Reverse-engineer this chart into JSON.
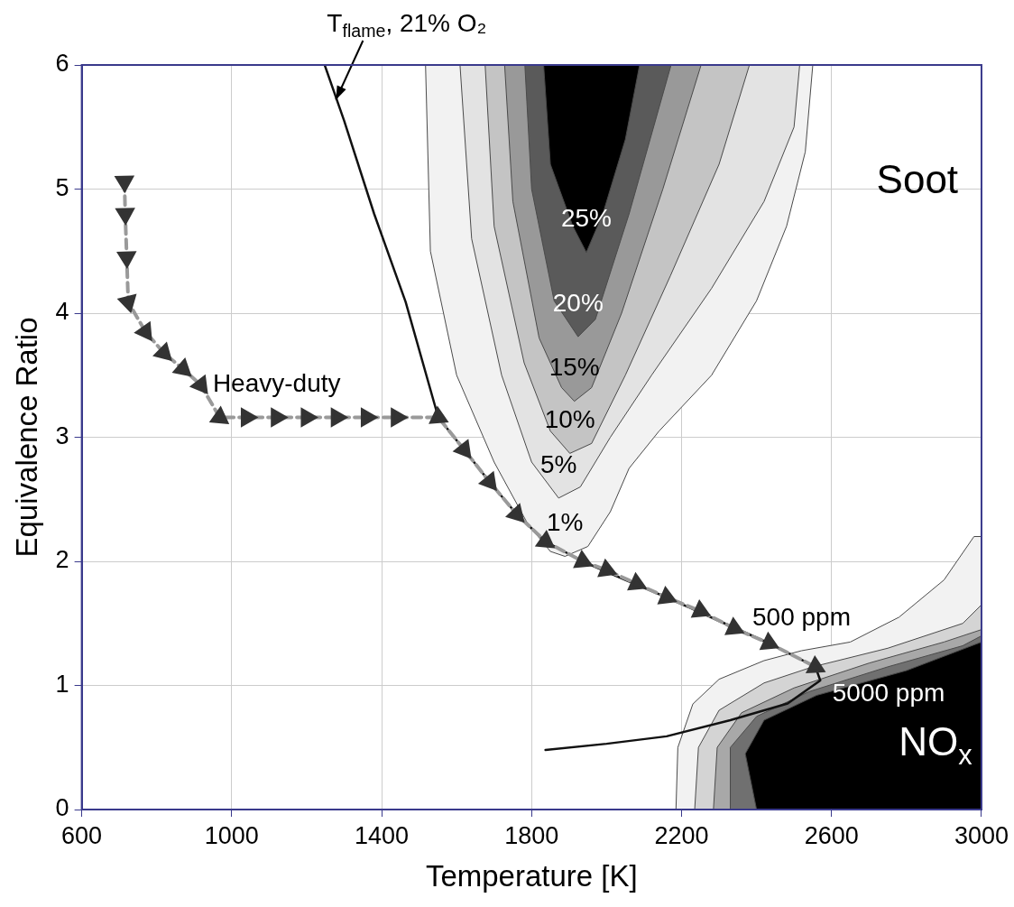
{
  "chart_data": {
    "type": "line",
    "xlabel": "Temperature [K]",
    "ylabel": "Equivalence Ratio",
    "xlim": [
      600,
      3000
    ],
    "ylim": [
      0,
      6
    ],
    "xticks": [
      600,
      1000,
      1400,
      1800,
      2200,
      2600,
      3000
    ],
    "yticks": [
      0,
      1,
      2,
      3,
      4,
      5,
      6
    ],
    "grid": true,
    "legend": false,
    "series": [
      {
        "type": "area",
        "color": "#f2f2f2",
        "x": [
          1517,
          1530,
          1600,
          1700,
          1790,
          1850,
          1889,
          1950,
          2010,
          2060,
          2140,
          2280,
          2400,
          2480,
          2530,
          2550
        ],
        "values": [
          6,
          4.5,
          3.5,
          2.8,
          2.3,
          2.08,
          2.04,
          2.12,
          2.4,
          2.75,
          3.05,
          3.5,
          4.1,
          4.7,
          5.3,
          6
        ]
      },
      {
        "type": "area",
        "color": "#e3e3e3",
        "x": [
          1609,
          1640,
          1720,
          1800,
          1872,
          1930,
          2010,
          2120,
          2280,
          2420,
          2500,
          2515
        ],
        "values": [
          6,
          4.6,
          3.5,
          2.8,
          2.51,
          2.6,
          3.0,
          3.5,
          4.2,
          4.9,
          5.5,
          6
        ]
      },
      {
        "type": "area",
        "color": "#c4c4c4",
        "x": [
          1676,
          1700,
          1780,
          1850,
          1902,
          1960,
          2050,
          2170,
          2300,
          2381
        ],
        "values": [
          6,
          4.7,
          3.6,
          3.05,
          2.87,
          2.95,
          3.5,
          4.3,
          5.2,
          6
        ]
      },
      {
        "type": "area",
        "color": "#999999",
        "x": [
          1728,
          1750,
          1820,
          1880,
          1914,
          1960,
          2040,
          2150,
          2252
        ],
        "values": [
          6,
          4.9,
          3.8,
          3.4,
          3.29,
          3.4,
          4.0,
          5.0,
          6
        ]
      },
      {
        "type": "area",
        "color": "#5a5a5a",
        "x": [
          1782,
          1800,
          1860,
          1924,
          1970,
          2060,
          2172
        ],
        "values": [
          6,
          5.0,
          4.1,
          3.81,
          3.95,
          4.8,
          6
        ]
      },
      {
        "type": "area",
        "color": "#000000",
        "x": [
          1832,
          1850,
          1910,
          1946,
          1990,
          2050,
          2088
        ],
        "values": [
          6,
          5.2,
          4.7,
          4.49,
          4.8,
          5.4,
          6
        ]
      },
      {
        "type": "area",
        "color": "#f2f2f2",
        "x": [
          2185,
          2190,
          2230,
          2300,
          2420,
          2520,
          2650,
          2780,
          2900,
          2980,
          3000,
          3000
        ],
        "values": [
          0,
          0.5,
          0.85,
          1.05,
          1.2,
          1.28,
          1.35,
          1.55,
          1.85,
          2.2,
          2.2,
          0
        ]
      },
      {
        "type": "area",
        "color": "#d4d4d4",
        "x": [
          2235,
          2245,
          2300,
          2420,
          2550,
          2750,
          2950,
          3000,
          3000
        ],
        "values": [
          0,
          0.5,
          0.8,
          1.02,
          1.15,
          1.3,
          1.5,
          1.65,
          0
        ]
      },
      {
        "type": "area",
        "color": "#a8a8a8",
        "x": [
          2285,
          2295,
          2360,
          2500,
          2700,
          2900,
          3000,
          3000
        ],
        "values": [
          0,
          0.5,
          0.78,
          0.98,
          1.18,
          1.35,
          1.45,
          0
        ]
      },
      {
        "type": "area",
        "color": "#707070",
        "x": [
          2330,
          2330,
          2400,
          2540,
          2750,
          2950,
          3000,
          3000
        ],
        "values": [
          0,
          0.5,
          0.75,
          0.95,
          1.15,
          1.32,
          1.4,
          0
        ]
      },
      {
        "type": "area",
        "color": "#000000",
        "x": [
          2400,
          2370,
          2420,
          2560,
          2800,
          3000,
          3000
        ],
        "values": [
          0,
          0.45,
          0.72,
          0.92,
          1.12,
          1.35,
          0
        ]
      },
      {
        "type": "line",
        "color": "#111111",
        "x": [
          1248,
          1300,
          1380,
          1464,
          1551,
          1620,
          1688,
          1760,
          1837,
          1936,
          2050,
          2160,
          2300,
          2433,
          2557,
          2570,
          2483,
          2330,
          2160,
          2000,
          1837
        ],
        "values": [
          6,
          5.55,
          4.8,
          4.09,
          3.16,
          2.9,
          2.64,
          2.38,
          2.16,
          2.0,
          1.85,
          1.71,
          1.52,
          1.34,
          1.15,
          1.04,
          0.855,
          0.72,
          0.59,
          0.53,
          0.48
        ]
      },
      {
        "type": "line",
        "color": "#333333",
        "line_style": "dashed",
        "marker": "triangle",
        "x": [
          714,
          716,
          720,
          724,
          770,
          819,
          870,
          918,
          968,
          1040,
          1120,
          1200,
          1280,
          1360,
          1440,
          1551,
          1620,
          1688,
          1760,
          1837,
          1936,
          2000,
          2080,
          2160,
          2250,
          2340,
          2433,
          2557
        ],
        "values": [
          5.06,
          4.8,
          4.45,
          4.09,
          3.85,
          3.68,
          3.55,
          3.42,
          3.16,
          3.16,
          3.16,
          3.16,
          3.16,
          3.16,
          3.16,
          3.16,
          2.9,
          2.64,
          2.38,
          2.16,
          2.0,
          1.93,
          1.82,
          1.71,
          1.6,
          1.46,
          1.34,
          1.15
        ]
      }
    ],
    "annotations": [
      {
        "text": "T$_{flame}$, 21% O₂",
        "x": 1278,
        "y": 5.72
      },
      {
        "text": "Heavy-duty",
        "x": 1120,
        "y": 3.16
      },
      "Soot",
      {
        "text": "25%",
        "x": 1946,
        "y": 4.49
      },
      {
        "text": "20%",
        "x": 1924,
        "y": 3.81
      },
      {
        "text": "15%",
        "x": 1914,
        "y": 3.29
      },
      {
        "text": "10%",
        "x": 1902,
        "y": 2.87
      },
      {
        "text": "5%",
        "x": 1872,
        "y": 2.51
      },
      {
        "text": "1%",
        "x": 1889,
        "y": 2.04
      },
      {
        "text": "500 ppm",
        "x": 2520,
        "y": 1.28
      },
      "5000 ppm",
      "NO$_{x}$"
    ]
  }
}
